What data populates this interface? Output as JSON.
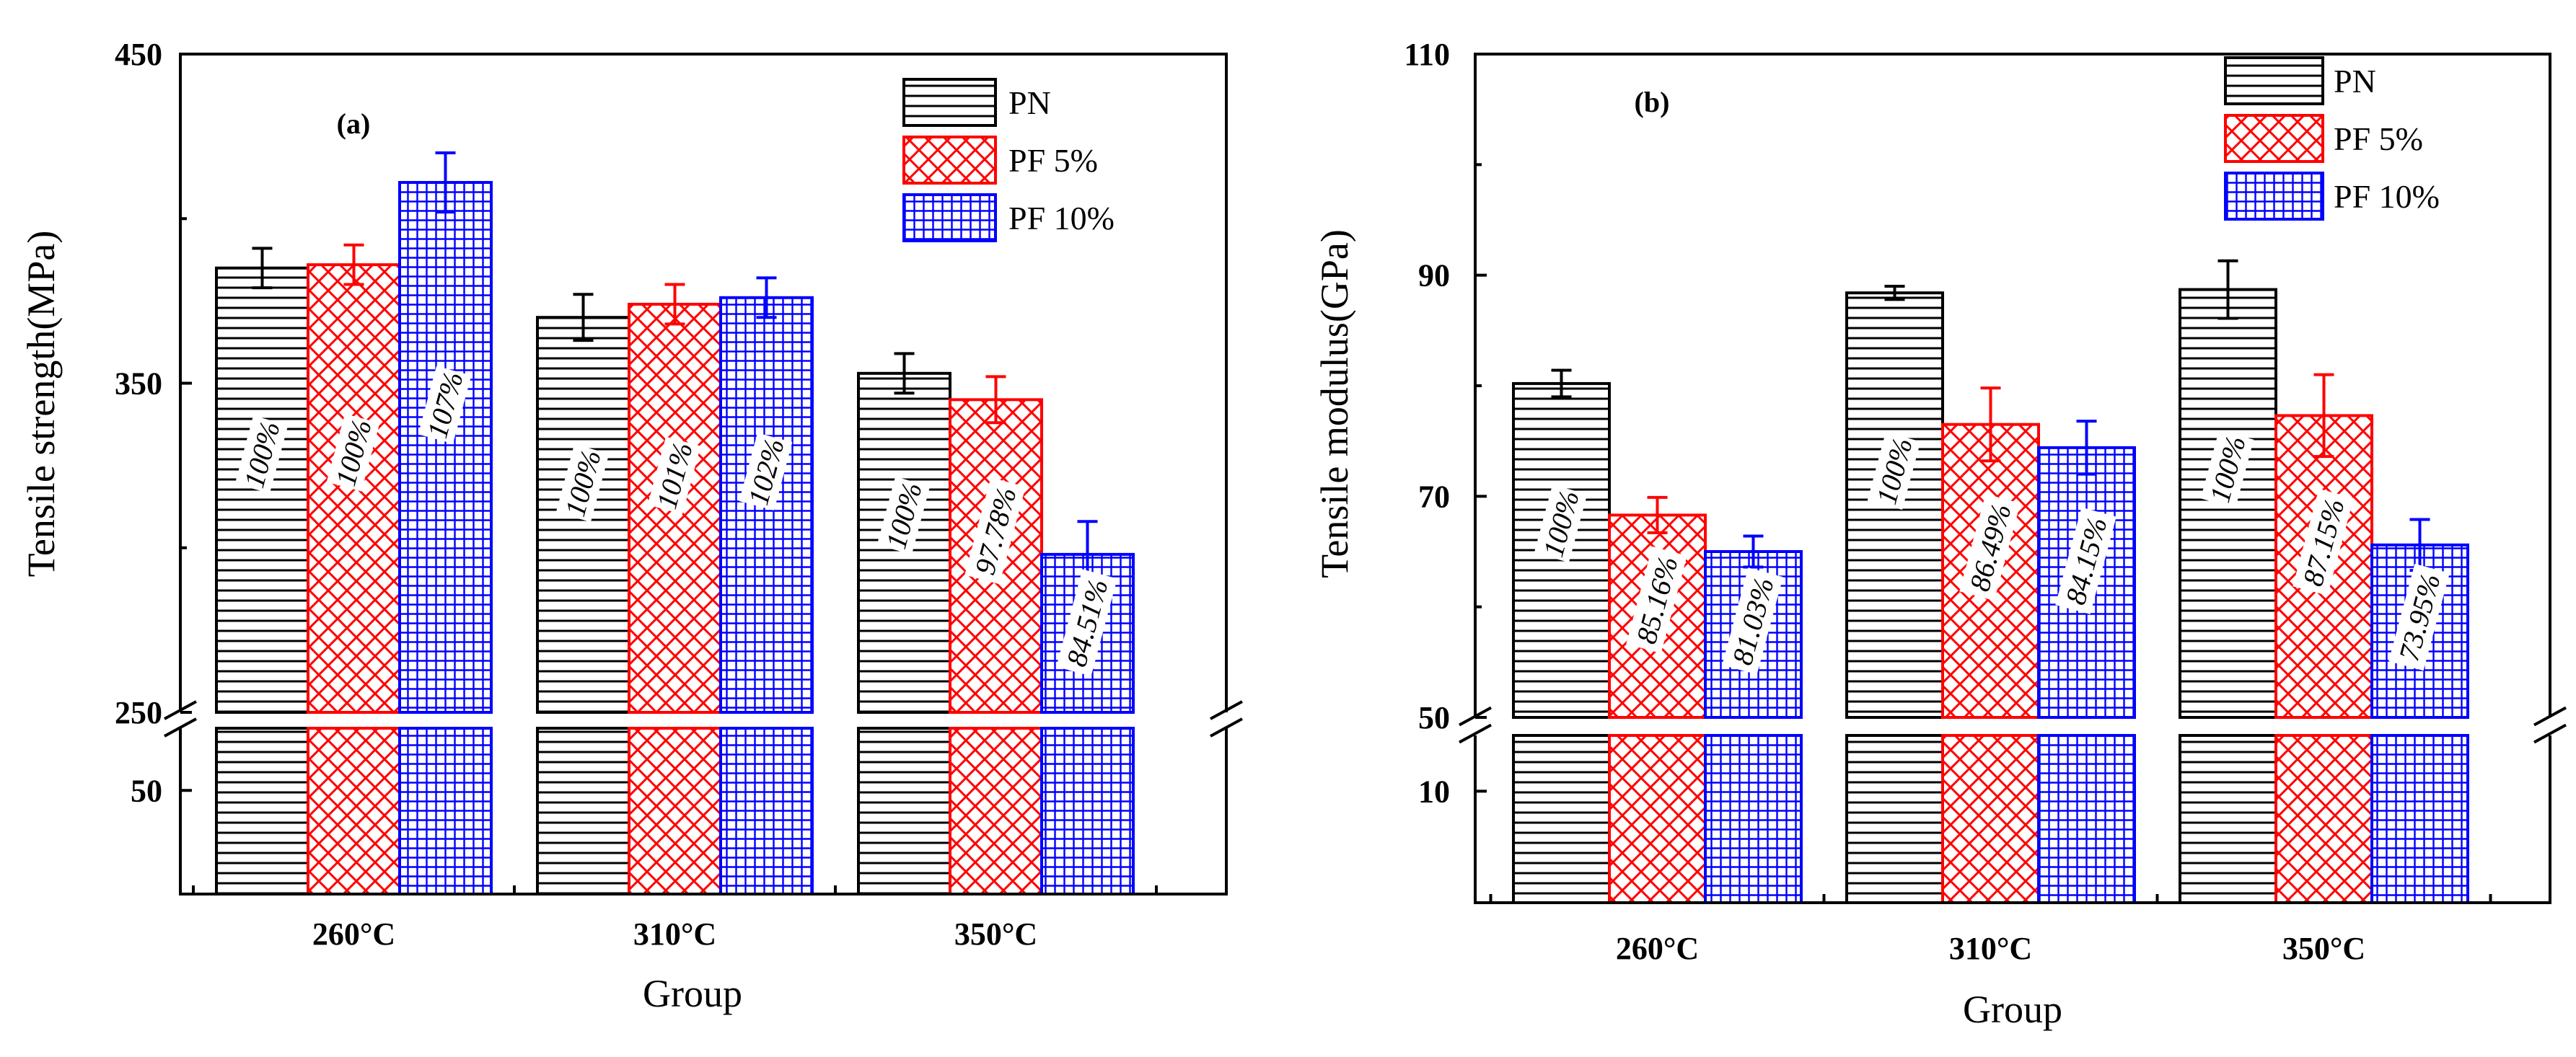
{
  "chart_data": [
    {
      "type": "bar",
      "panel_label": "(a)",
      "categories": [
        "260°C",
        "310°C",
        "350°C"
      ],
      "xlabel": "Group",
      "ylabel": "Tensile strength(MPa)",
      "ylim_upper": [
        250,
        450
      ],
      "ylim_lower": [
        0,
        80
      ],
      "upper_ticks": [
        "250",
        "350",
        "450"
      ],
      "lower_ticks": [
        "50"
      ],
      "lower_tick_values": [
        50
      ],
      "legend_position": "top-right",
      "series": [
        {
          "name": "PN",
          "color": "#000000",
          "pattern": "hlines",
          "values": [
            385,
            370,
            353
          ],
          "errors": [
            6,
            7,
            6
          ],
          "labels": [
            "100%",
            "100%",
            "100%"
          ]
        },
        {
          "name": "PF 5%",
          "color": "#ff0000",
          "pattern": "cross",
          "values": [
            386,
            374,
            345
          ],
          "errors": [
            6,
            6,
            7
          ],
          "labels": [
            "100%",
            "101%",
            "97.78%"
          ]
        },
        {
          "name": "PF 10%",
          "color": "#0000ff",
          "pattern": "grid",
          "values": [
            411,
            376,
            298
          ],
          "errors": [
            9,
            6,
            10
          ],
          "labels": [
            "107%",
            "102%",
            "84.51%"
          ]
        }
      ]
    },
    {
      "type": "bar",
      "panel_label": "(b)",
      "categories": [
        "260°C",
        "310°C",
        "350°C"
      ],
      "xlabel": "Group",
      "ylabel": "Tensile modulus(GPa)",
      "ylim_upper": [
        50,
        110
      ],
      "ylim_lower": [
        0,
        15
      ],
      "upper_ticks": [
        "50",
        "70",
        "90",
        "110"
      ],
      "lower_ticks": [
        "10"
      ],
      "lower_tick_values": [
        10
      ],
      "legend_position": "top-right",
      "series": [
        {
          "name": "PN",
          "color": "#000000",
          "pattern": "hlines",
          "values": [
            80.2,
            88.4,
            88.7
          ],
          "errors": [
            1.2,
            0.6,
            2.6
          ],
          "labels": [
            "100%",
            "100%",
            "100%"
          ]
        },
        {
          "name": "PF 5%",
          "color": "#ff0000",
          "pattern": "cross",
          "values": [
            68.3,
            76.5,
            77.3
          ],
          "errors": [
            1.6,
            3.3,
            3.7
          ],
          "labels": [
            "85.16%",
            "86.49%",
            "87.15%"
          ]
        },
        {
          "name": "PF 10%",
          "color": "#0000ff",
          "pattern": "grid",
          "values": [
            65.0,
            74.4,
            65.6
          ],
          "errors": [
            1.4,
            2.4,
            2.3
          ],
          "labels": [
            "81.03%",
            "84.15%",
            "73.95%"
          ]
        }
      ]
    }
  ]
}
